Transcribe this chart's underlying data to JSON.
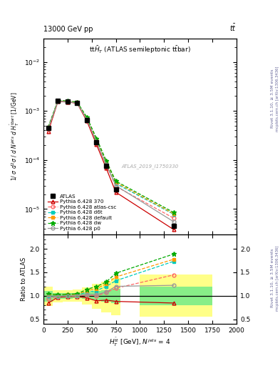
{
  "x_data": [
    50,
    150,
    250,
    350,
    450,
    550,
    650,
    750,
    1350
  ],
  "xlim": [
    0,
    2000
  ],
  "ylim_main": [
    3e-06,
    0.03
  ],
  "ylim_ratio": [
    0.4,
    2.3
  ],
  "yticks_ratio": [
    0.5,
    1.0,
    1.5,
    2.0
  ],
  "atlas_y": [
    0.00045,
    0.0016,
    0.00155,
    0.00145,
    0.00065,
    0.00023,
    7.5e-05,
    2.5e-05,
    4.5e-06
  ],
  "py370_y": [
    0.00038,
    0.00155,
    0.00152,
    0.00143,
    0.00062,
    0.000205,
    6.8e-05,
    2.2e-05,
    3.8e-06
  ],
  "py_atl_y": [
    0.00042,
    0.00158,
    0.00154,
    0.00144,
    0.00066,
    0.00023,
    8e-05,
    2.9e-05,
    6.5e-06
  ],
  "py_d6t_y": [
    0.00045,
    0.0016,
    0.00156,
    0.00147,
    0.0007,
    0.000255,
    9e-05,
    3.3e-05,
    7.8e-06
  ],
  "py_def_y": [
    0.00046,
    0.00162,
    0.00158,
    0.00149,
    0.00072,
    0.000265,
    9.4e-05,
    3.5e-05,
    8e-06
  ],
  "py_dw_y": [
    0.00047,
    0.00163,
    0.0016,
    0.00151,
    0.00074,
    0.000275,
    9.7e-05,
    3.7e-05,
    8.5e-06
  ],
  "py_p0_y": [
    0.00044,
    0.00158,
    0.00154,
    0.00145,
    0.00067,
    0.000235,
    8.1e-05,
    3e-05,
    5.5e-06
  ],
  "green_band_lo": [
    0.88,
    0.93,
    0.94,
    0.95,
    0.93,
    0.9,
    0.87,
    0.84,
    0.8
  ],
  "green_band_hi": [
    1.1,
    1.05,
    1.05,
    1.05,
    1.07,
    1.1,
    1.12,
    1.15,
    1.2
  ],
  "yellow_band_lo": [
    0.78,
    0.86,
    0.88,
    0.88,
    0.82,
    0.72,
    0.65,
    0.58,
    0.55
  ],
  "yellow_band_hi": [
    1.2,
    1.12,
    1.12,
    1.13,
    1.18,
    1.25,
    1.3,
    1.38,
    1.45
  ],
  "color_370": "#cc0000",
  "color_atl": "#ff6666",
  "color_d6t": "#00ccbb",
  "color_def": "#ff9900",
  "color_dw": "#00aa00",
  "color_p0": "#999999",
  "color_atlas": "black",
  "color_green_band": "#88ee88",
  "color_yellow_band": "#ffff88"
}
